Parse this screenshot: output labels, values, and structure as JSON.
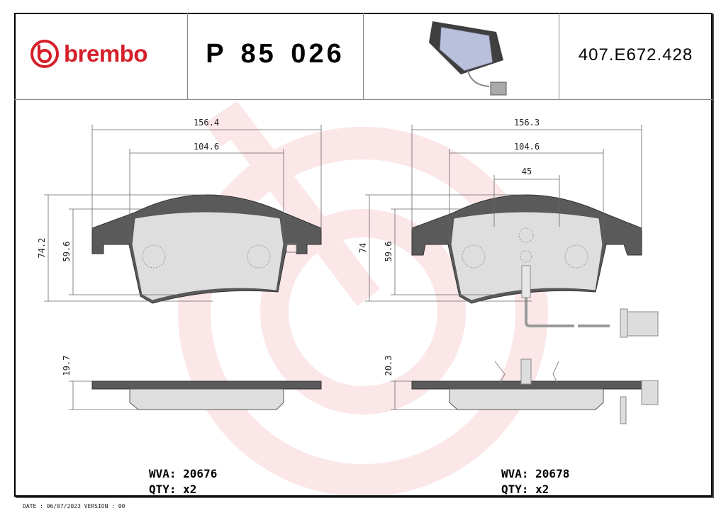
{
  "header": {
    "brand": "brembo",
    "product_code": "P 85 026",
    "article_number": "407.E672.428"
  },
  "watermark": {
    "icon": "brembo-logo-watermark",
    "color": "#f5c9cc"
  },
  "colors": {
    "brand_red": "#d5202a",
    "backplate": "#555555",
    "friction": "#dcdcdc"
  },
  "left_pad": {
    "dims": {
      "width_total": "156.4",
      "width_inner": "104.6",
      "height_total": "74.2",
      "height_inner": "59.6",
      "thickness": "19.7"
    },
    "wva": "WVA: 20676",
    "qty": "QTY: x2"
  },
  "right_pad": {
    "dims": {
      "width_total": "156.3",
      "width_inner": "104.6",
      "sensor_spacing": "45",
      "height_total": "74",
      "height_inner": "59.6",
      "thickness": "20.3"
    },
    "wva": "WVA: 20678",
    "qty": "QTY: x2"
  },
  "footer": "DATE : 06/07/2023 VERSION : 00"
}
